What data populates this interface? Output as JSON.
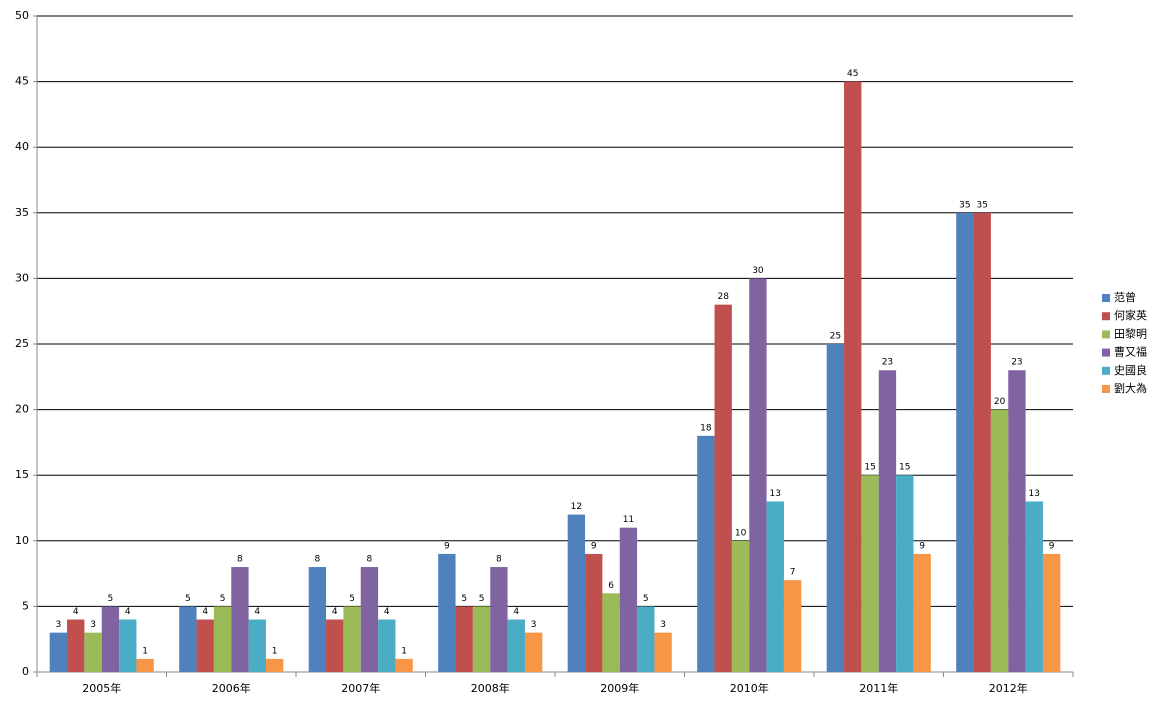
{
  "chart_data": {
    "type": "bar",
    "categories": [
      "2005年",
      "2006年",
      "2007年",
      "2008年",
      "2009年",
      "2010年",
      "2011年",
      "2012年"
    ],
    "series": [
      {
        "name": "范曾",
        "color": "#4f81bd",
        "values": [
          3,
          5,
          8,
          9,
          12,
          18,
          25,
          35
        ]
      },
      {
        "name": "何家英",
        "color": "#c0504d",
        "values": [
          4,
          4,
          4,
          5,
          9,
          28,
          45,
          35
        ]
      },
      {
        "name": "田黎明",
        "color": "#9bbb59",
        "values": [
          3,
          5,
          5,
          5,
          6,
          10,
          15,
          20
        ]
      },
      {
        "name": "曹又福",
        "color": "#8064a2",
        "values": [
          5,
          8,
          8,
          8,
          11,
          30,
          23,
          23
        ]
      },
      {
        "name": "史國良",
        "color": "#4bacc6",
        "values": [
          4,
          4,
          4,
          4,
          5,
          13,
          15,
          13
        ]
      },
      {
        "name": "劉大為",
        "color": "#f79646",
        "values": [
          1,
          1,
          1,
          3,
          3,
          7,
          9,
          9
        ]
      }
    ],
    "ylim": [
      0,
      50
    ],
    "yticks": [
      0,
      5,
      10,
      15,
      20,
      25,
      30,
      35,
      40,
      45,
      50
    ],
    "grid": true,
    "legend": "right"
  }
}
